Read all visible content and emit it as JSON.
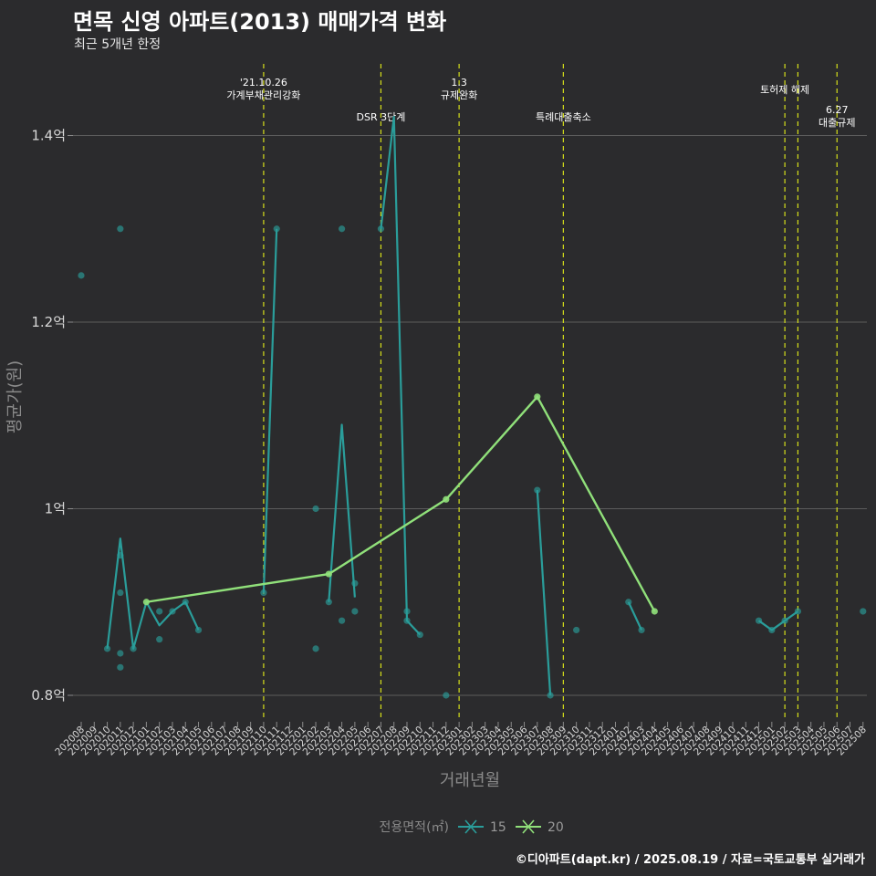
{
  "header": {
    "title": "면목 신영 아파트(2013) 매매가격 변화",
    "subtitle": "최근 5개년 한정",
    "source": "©디아파트(dapt.kr) / 2025.08.19 / 자료=국토교통부 실거래가"
  },
  "colors": {
    "background": "#2b2b2d",
    "grid": "#5c5c5c",
    "series_15": "#2a9d9a",
    "series_20": "#90e07a",
    "events": "#d6e01a"
  },
  "chart_data": {
    "type": "line",
    "title": "면목 신영 아파트(2013) 매매가격 변화",
    "xlabel": "거래년월",
    "ylabel": "평균가(원)",
    "ylim": [
      0.76,
      1.46
    ],
    "yticks": [
      {
        "value": 0.8,
        "label": "0.8억"
      },
      {
        "value": 1.0,
        "label": "1억"
      },
      {
        "value": 1.2,
        "label": "1.2억"
      },
      {
        "value": 1.4,
        "label": "1.4억"
      }
    ],
    "x_categories": [
      "202008",
      "202009",
      "202010",
      "202011",
      "202012",
      "202101",
      "202102",
      "202103",
      "202104",
      "202105",
      "202106",
      "202107",
      "202108",
      "202109",
      "202110",
      "202111",
      "202112",
      "202201",
      "202202",
      "202203",
      "202204",
      "202205",
      "202206",
      "202207",
      "202208",
      "202209",
      "202210",
      "202211",
      "202212",
      "202301",
      "202302",
      "202303",
      "202304",
      "202305",
      "202306",
      "202307",
      "202308",
      "202309",
      "202310",
      "202311",
      "202312",
      "202401",
      "202402",
      "202403",
      "202404",
      "202405",
      "202406",
      "202407",
      "202408",
      "202409",
      "202410",
      "202411",
      "202412",
      "202501",
      "202502",
      "202503",
      "202504",
      "202505",
      "202506",
      "202507",
      "202508"
    ],
    "legend": {
      "title": "전용면적(㎡)",
      "position": "bottom"
    },
    "series": [
      {
        "name": "15",
        "line": [
          {
            "x": "202010",
            "y": 0.85
          },
          {
            "x": "202011",
            "y": 0.968
          },
          {
            "x": "202012",
            "y": 0.85
          },
          {
            "x": "202101",
            "y": 0.9
          },
          {
            "x": "202102",
            "y": 0.875
          },
          {
            "x": "202103",
            "y": 0.89
          },
          {
            "x": "202104",
            "y": 0.9
          },
          {
            "x": "202105",
            "y": 0.87
          },
          {
            "x": "202110",
            "y": 0.91
          },
          {
            "x": "202111",
            "y": 1.3
          },
          {
            "x": "202203",
            "y": 0.9
          },
          {
            "x": "202204",
            "y": 1.09
          },
          {
            "x": "202205",
            "y": 0.905
          },
          {
            "x": "202207",
            "y": 1.3
          },
          {
            "x": "202208",
            "y": 1.42
          },
          {
            "x": "202209",
            "y": 0.88
          },
          {
            "x": "202210",
            "y": 0.865
          },
          {
            "x": "202307",
            "y": 1.02
          },
          {
            "x": "202308",
            "y": 0.8
          },
          {
            "x": "202402",
            "y": 0.9
          },
          {
            "x": "202403",
            "y": 0.87
          },
          {
            "x": "202412",
            "y": 0.88
          },
          {
            "x": "202501",
            "y": 0.87
          },
          {
            "x": "202502",
            "y": 0.88
          },
          {
            "x": "202503",
            "y": 0.89
          }
        ],
        "points": [
          {
            "x": "202008",
            "y": 1.25
          },
          {
            "x": "202010",
            "y": 0.85
          },
          {
            "x": "202011",
            "y": 1.3
          },
          {
            "x": "202011",
            "y": 0.95
          },
          {
            "x": "202011",
            "y": 0.91
          },
          {
            "x": "202011",
            "y": 0.845
          },
          {
            "x": "202011",
            "y": 0.83
          },
          {
            "x": "202012",
            "y": 0.85
          },
          {
            "x": "202102",
            "y": 0.89
          },
          {
            "x": "202102",
            "y": 0.86
          },
          {
            "x": "202103",
            "y": 0.89
          },
          {
            "x": "202104",
            "y": 0.9
          },
          {
            "x": "202105",
            "y": 0.87
          },
          {
            "x": "202110",
            "y": 0.91
          },
          {
            "x": "202111",
            "y": 1.3
          },
          {
            "x": "202202",
            "y": 1.0
          },
          {
            "x": "202202",
            "y": 0.85
          },
          {
            "x": "202203",
            "y": 0.9
          },
          {
            "x": "202204",
            "y": 1.3
          },
          {
            "x": "202204",
            "y": 0.88
          },
          {
            "x": "202205",
            "y": 0.92
          },
          {
            "x": "202205",
            "y": 0.89
          },
          {
            "x": "202207",
            "y": 1.3
          },
          {
            "x": "202209",
            "y": 0.89
          },
          {
            "x": "202209",
            "y": 0.88
          },
          {
            "x": "202210",
            "y": 0.865
          },
          {
            "x": "202212",
            "y": 0.8
          },
          {
            "x": "202307",
            "y": 1.02
          },
          {
            "x": "202308",
            "y": 0.8
          },
          {
            "x": "202310",
            "y": 0.87
          },
          {
            "x": "202402",
            "y": 0.9
          },
          {
            "x": "202403",
            "y": 0.87
          },
          {
            "x": "202412",
            "y": 0.88
          },
          {
            "x": "202501",
            "y": 0.87
          },
          {
            "x": "202502",
            "y": 0.88
          },
          {
            "x": "202503",
            "y": 0.89
          },
          {
            "x": "202508",
            "y": 0.89
          }
        ]
      },
      {
        "name": "20",
        "line": [
          {
            "x": "202101",
            "y": 0.9
          },
          {
            "x": "202203",
            "y": 0.93
          },
          {
            "x": "202212",
            "y": 1.01
          },
          {
            "x": "202307",
            "y": 1.12
          },
          {
            "x": "202404",
            "y": 0.89
          }
        ],
        "points": [
          {
            "x": "202101",
            "y": 0.9
          },
          {
            "x": "202203",
            "y": 0.93
          },
          {
            "x": "202212",
            "y": 1.01
          },
          {
            "x": "202307",
            "y": 1.12
          },
          {
            "x": "202404",
            "y": 0.89
          }
        ]
      }
    ],
    "events": [
      {
        "x": "202110",
        "lines": [
          "'21.10.26",
          "가계부채관리강화"
        ],
        "level": 1
      },
      {
        "x": "202207",
        "lines": [
          "DSR 3단계"
        ],
        "level": 3
      },
      {
        "x": "202301",
        "lines": [
          "1.3",
          "규제완화"
        ],
        "level": 1
      },
      {
        "x": "202309",
        "lines": [
          "특례대출축소"
        ],
        "level": 3
      },
      {
        "x": "202502",
        "lines": [
          "토허제 해제"
        ],
        "level": 2
      },
      {
        "x": "202503",
        "lines": [],
        "level": 0
      },
      {
        "x": "202506",
        "lines": [
          "6.27",
          "대출규제"
        ],
        "level": 4
      }
    ]
  }
}
